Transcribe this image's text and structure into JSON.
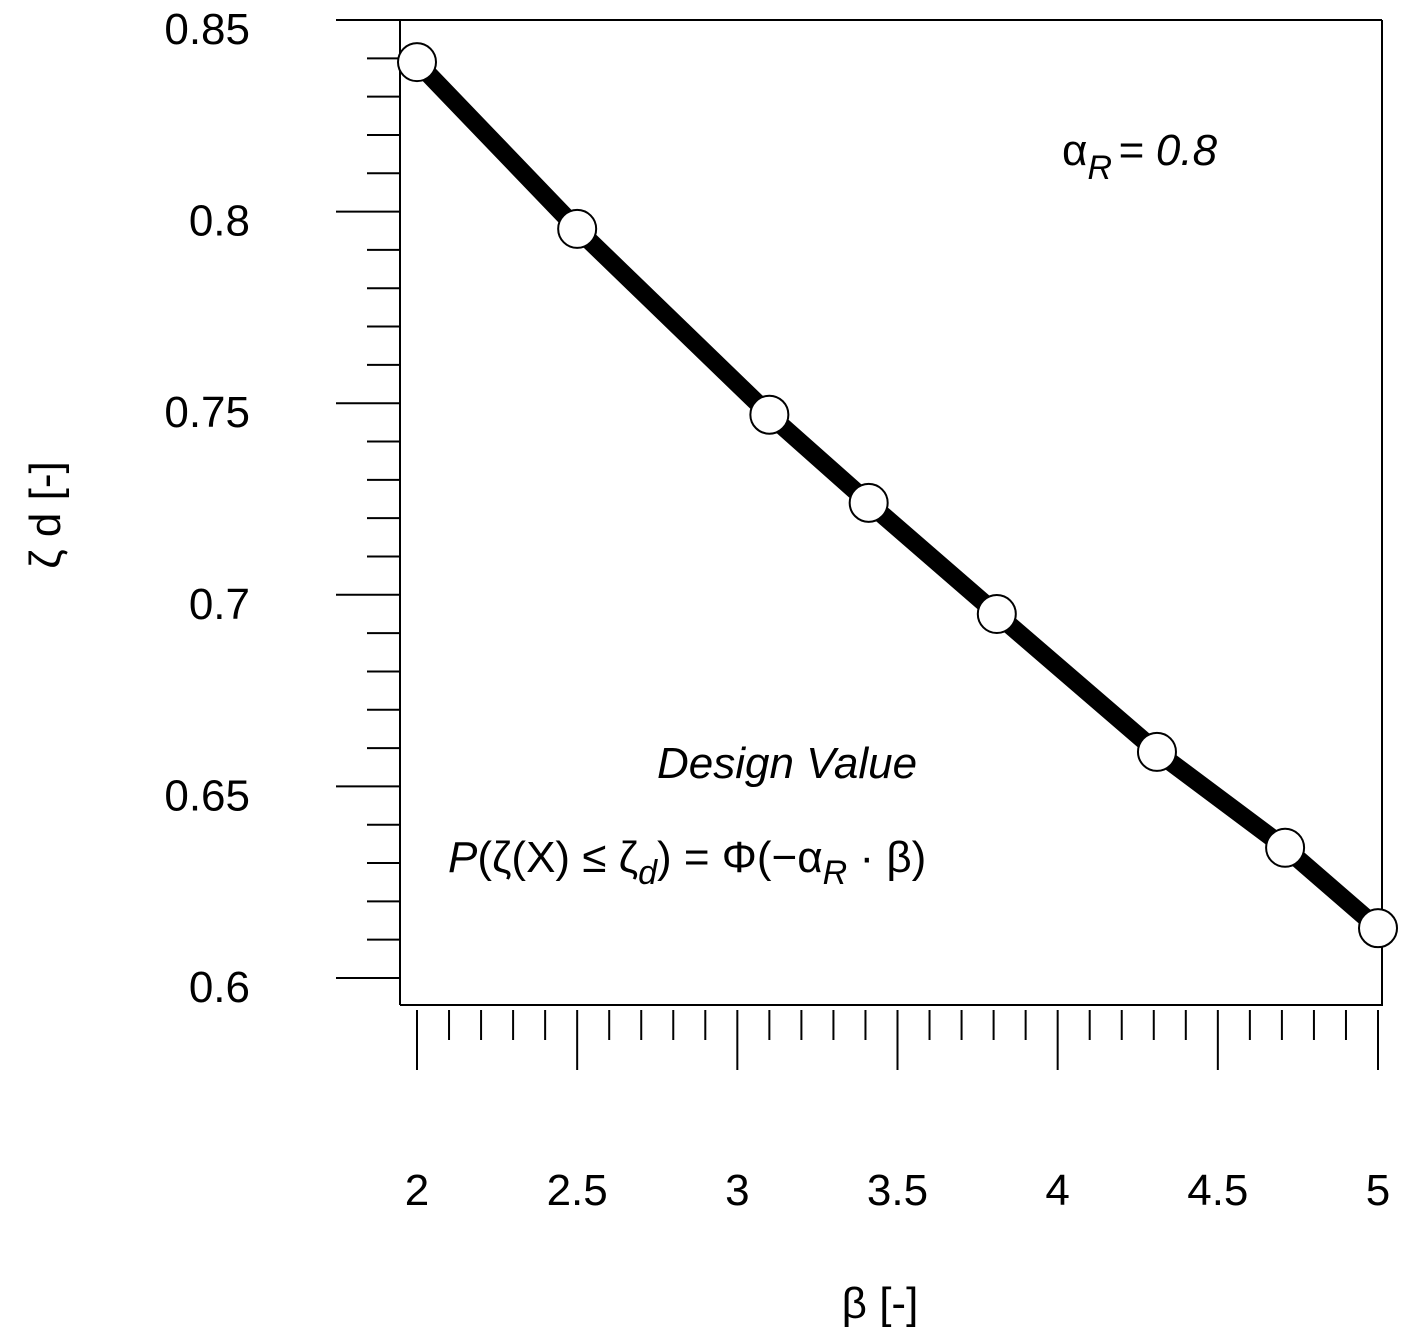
{
  "chart_data": {
    "type": "line",
    "xlabel": "β [-]",
    "ylabel": "ζ d [-]",
    "xlim": [
      2,
      5
    ],
    "ylim": [
      0.6,
      0.85
    ],
    "x_ticks": [
      "2",
      "2.5",
      "3",
      "3.5",
      "4",
      "4.5",
      "5"
    ],
    "y_ticks": [
      "0.6",
      "0.65",
      "0.7",
      "0.75",
      "0.8",
      "0.85"
    ],
    "grid": false,
    "x": [
      2.0,
      2.5,
      3.1,
      3.41,
      3.81,
      4.31,
      4.71,
      5.0
    ],
    "y": [
      0.839,
      0.7955,
      0.747,
      0.724,
      0.695,
      0.659,
      0.634,
      0.613
    ],
    "line_color": "#000000",
    "marker": "open-circle",
    "annotations": {
      "alpha": {
        "symbol": "α",
        "sub": "R",
        "rest": "= 0.8"
      },
      "design_value": "Design Value",
      "formula": {
        "p": "P",
        "a": "(ζ(X) ≤ ζ",
        "a_sub": "d",
        "b": ") = Φ(−α",
        "b_sub": "R",
        "c": " · β)"
      }
    }
  }
}
